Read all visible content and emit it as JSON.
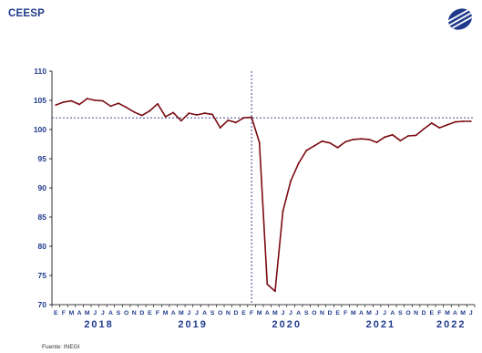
{
  "header": {
    "brand": "CEESP",
    "logo_icon": "ceesp-logo-icon"
  },
  "colors": {
    "brand": "#1f3a8c",
    "series": "#7a0b12",
    "reference_lines": "#2a2a8a",
    "axis_text": "#1f3a8c"
  },
  "chart_data": {
    "type": "line",
    "title": "",
    "xlabel": "",
    "ylabel": "",
    "ylim": [
      70,
      110
    ],
    "yticks": [
      70,
      75,
      80,
      85,
      90,
      95,
      100,
      105,
      110
    ],
    "grid": false,
    "reference": {
      "horizontal_y": 102,
      "vertical_month_index": 25
    },
    "month_labels": [
      "E",
      "F",
      "M",
      "A",
      "M",
      "J",
      "J",
      "A",
      "S",
      "O",
      "N",
      "D",
      "E",
      "F",
      "M",
      "A",
      "M",
      "J",
      "J",
      "A",
      "S",
      "O",
      "N",
      "D",
      "E",
      "F",
      "M",
      "A",
      "M",
      "J",
      "J",
      "A",
      "S",
      "O",
      "N",
      "D",
      "E",
      "F",
      "M",
      "A",
      "M",
      "J",
      "J",
      "A",
      "S",
      "O",
      "N",
      "D",
      "E",
      "F",
      "M",
      "A",
      "M",
      "J"
    ],
    "year_labels": [
      {
        "label": "2018",
        "start": 0,
        "end": 11
      },
      {
        "label": "2019",
        "start": 12,
        "end": 23
      },
      {
        "label": "2020",
        "start": 24,
        "end": 35
      },
      {
        "label": "2021",
        "start": 36,
        "end": 47
      },
      {
        "label": "2022",
        "start": 48,
        "end": 53
      }
    ],
    "series": [
      {
        "values": [
          104.2,
          104.7,
          104.9,
          104.3,
          105.3,
          105.0,
          104.9,
          104.0,
          104.5,
          103.8,
          103.0,
          102.4,
          103.2,
          104.4,
          102.2,
          102.9,
          101.5,
          102.8,
          102.5,
          102.8,
          102.6,
          100.3,
          101.6,
          101.2,
          102.0,
          102.1,
          97.8,
          73.5,
          72.3,
          86.0,
          91.2,
          94.2,
          96.4,
          97.2,
          98.0,
          97.7,
          96.9,
          97.9,
          98.3,
          98.4,
          98.3,
          97.8,
          98.7,
          99.1,
          98.1,
          98.9,
          99.0,
          100.1,
          101.1,
          100.3,
          100.8,
          101.3,
          101.4,
          101.4
        ]
      }
    ]
  },
  "footer": {
    "source": "Fuente: INEGI"
  }
}
